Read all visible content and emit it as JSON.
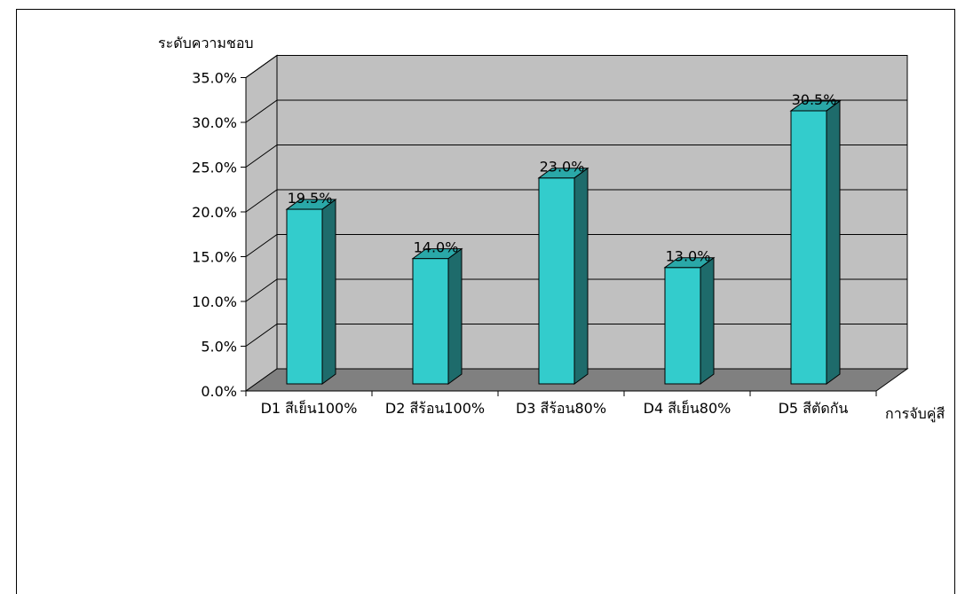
{
  "chart_data": {
    "type": "bar",
    "title": "",
    "ylabel": "ระดับความชอบ",
    "xlabel": "การจับคู่สี",
    "categories": [
      "D1 สีเย็น100%",
      "D2 สีร้อน100%",
      "D3 สีร้อน80%",
      "D4 สีเย็น80%",
      "D5 สีตัดกัน"
    ],
    "values": [
      19.5,
      14.0,
      23.0,
      13.0,
      30.5
    ],
    "value_labels": [
      "19.5%",
      "14.0%",
      "23.0%",
      "13.0%",
      "30.5%"
    ],
    "ylim": [
      0,
      35
    ],
    "yticks": [
      "0.0%",
      "5.0%",
      "10.0%",
      "15.0%",
      "20.0%",
      "25.0%",
      "30.0%",
      "35.0%"
    ],
    "grid": true,
    "legend": "none",
    "colors": {
      "bar_front": "#33CCCC",
      "bar_side": "#1E6B6B",
      "bar_top": "#2AA8A8",
      "wall": "#C0C0C0",
      "floor": "#808080"
    }
  }
}
